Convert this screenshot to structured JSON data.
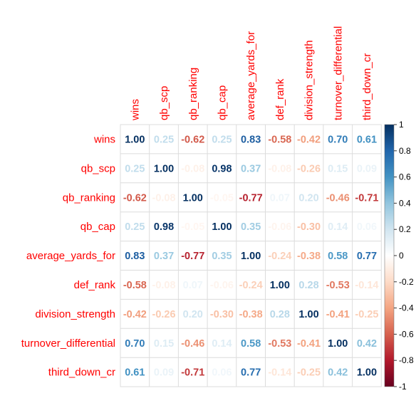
{
  "chart_data": {
    "type": "heatmap",
    "variables": [
      "wins",
      "qb_scp",
      "qb_ranking",
      "qb_cap",
      "average_yards_for",
      "def_rank",
      "division_strength",
      "turnover_differential",
      "third_down_cr"
    ],
    "matrix": [
      [
        1.0,
        0.25,
        -0.62,
        0.25,
        0.83,
        -0.58,
        -0.42,
        0.7,
        0.61
      ],
      [
        0.25,
        1.0,
        -0.08,
        0.98,
        0.37,
        -0.08,
        -0.26,
        0.15,
        0.09
      ],
      [
        -0.62,
        -0.08,
        1.0,
        -0.05,
        -0.77,
        0.07,
        0.2,
        -0.46,
        -0.71
      ],
      [
        0.25,
        0.98,
        -0.05,
        1.0,
        0.35,
        -0.06,
        -0.3,
        0.14,
        0.06
      ],
      [
        0.83,
        0.37,
        -0.77,
        0.35,
        1.0,
        -0.24,
        -0.38,
        0.58,
        0.77
      ],
      [
        -0.58,
        -0.08,
        0.07,
        -0.06,
        -0.24,
        1.0,
        0.28,
        -0.53,
        -0.14
      ],
      [
        -0.42,
        -0.26,
        0.2,
        -0.3,
        -0.38,
        0.28,
        1.0,
        -0.41,
        -0.25
      ],
      [
        0.7,
        0.15,
        -0.46,
        0.14,
        0.58,
        -0.53,
        -0.41,
        1.0,
        0.42
      ],
      [
        0.61,
        0.09,
        -0.71,
        0.06,
        0.77,
        -0.14,
        -0.25,
        0.42,
        1.0
      ]
    ],
    "colorbar": {
      "ticks": [
        "1",
        "0.8",
        "0.6",
        "0.4",
        "0.2",
        "0",
        "-0.2",
        "-0.4",
        "-0.6",
        "-0.8",
        "-1"
      ],
      "range": [
        -1,
        1
      ]
    },
    "colors": {
      "label": "#ff0000",
      "grid": "#dcdcdc",
      "positive_strong": "#053061",
      "negative_strong": "#67001f"
    }
  }
}
